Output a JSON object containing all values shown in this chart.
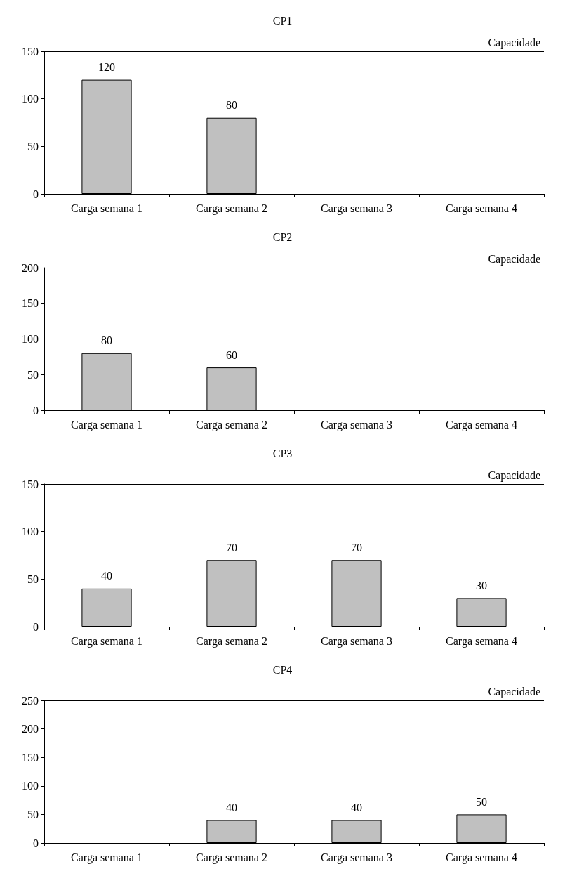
{
  "chart_data": [
    {
      "type": "bar",
      "title": "CP1",
      "categories": [
        "Carga semana 1",
        "Carga semana 2",
        "Carga semana 3",
        "Carga semana 4"
      ],
      "values": [
        120,
        80,
        null,
        null
      ],
      "color": "#c0c0c0",
      "ylim": [
        0,
        150
      ],
      "yticks": [
        0,
        50,
        100,
        150
      ],
      "data_labels": true,
      "grid": false,
      "ref_lines": [
        {
          "axis": "y",
          "value": 150,
          "label": "Capacidade",
          "color": "#000000",
          "line_style": "solid"
        }
      ]
    },
    {
      "type": "bar",
      "title": "CP2",
      "categories": [
        "Carga semana 1",
        "Carga semana 2",
        "Carga semana 3",
        "Carga semana 4"
      ],
      "values": [
        80,
        60,
        null,
        null
      ],
      "color": "#c0c0c0",
      "ylim": [
        0,
        200
      ],
      "yticks": [
        0,
        50,
        100,
        150,
        200
      ],
      "data_labels": true,
      "grid": false,
      "ref_lines": [
        {
          "axis": "y",
          "value": 200,
          "label": "Capacidade",
          "color": "#000000",
          "line_style": "solid"
        }
      ]
    },
    {
      "type": "bar",
      "title": "CP3",
      "categories": [
        "Carga semana 1",
        "Carga semana 2",
        "Carga semana 3",
        "Carga semana 4"
      ],
      "values": [
        40,
        70,
        70,
        30
      ],
      "color": "#c0c0c0",
      "ylim": [
        0,
        150
      ],
      "yticks": [
        0,
        50,
        100,
        150
      ],
      "data_labels": true,
      "grid": false,
      "ref_lines": [
        {
          "axis": "y",
          "value": 150,
          "label": "Capacidade",
          "color": "#000000",
          "line_style": "solid"
        }
      ]
    },
    {
      "type": "bar",
      "title": "CP4",
      "categories": [
        "Carga semana 1",
        "Carga semana 2",
        "Carga semana 3",
        "Carga semana 4"
      ],
      "values": [
        null,
        40,
        40,
        50
      ],
      "color": "#c0c0c0",
      "ylim": [
        0,
        250
      ],
      "yticks": [
        0,
        50,
        100,
        150,
        200,
        250
      ],
      "data_labels": true,
      "grid": false,
      "ref_lines": [
        {
          "axis": "y",
          "value": 250,
          "label": "Capacidade",
          "color": "#000000",
          "line_style": "solid"
        }
      ]
    }
  ]
}
